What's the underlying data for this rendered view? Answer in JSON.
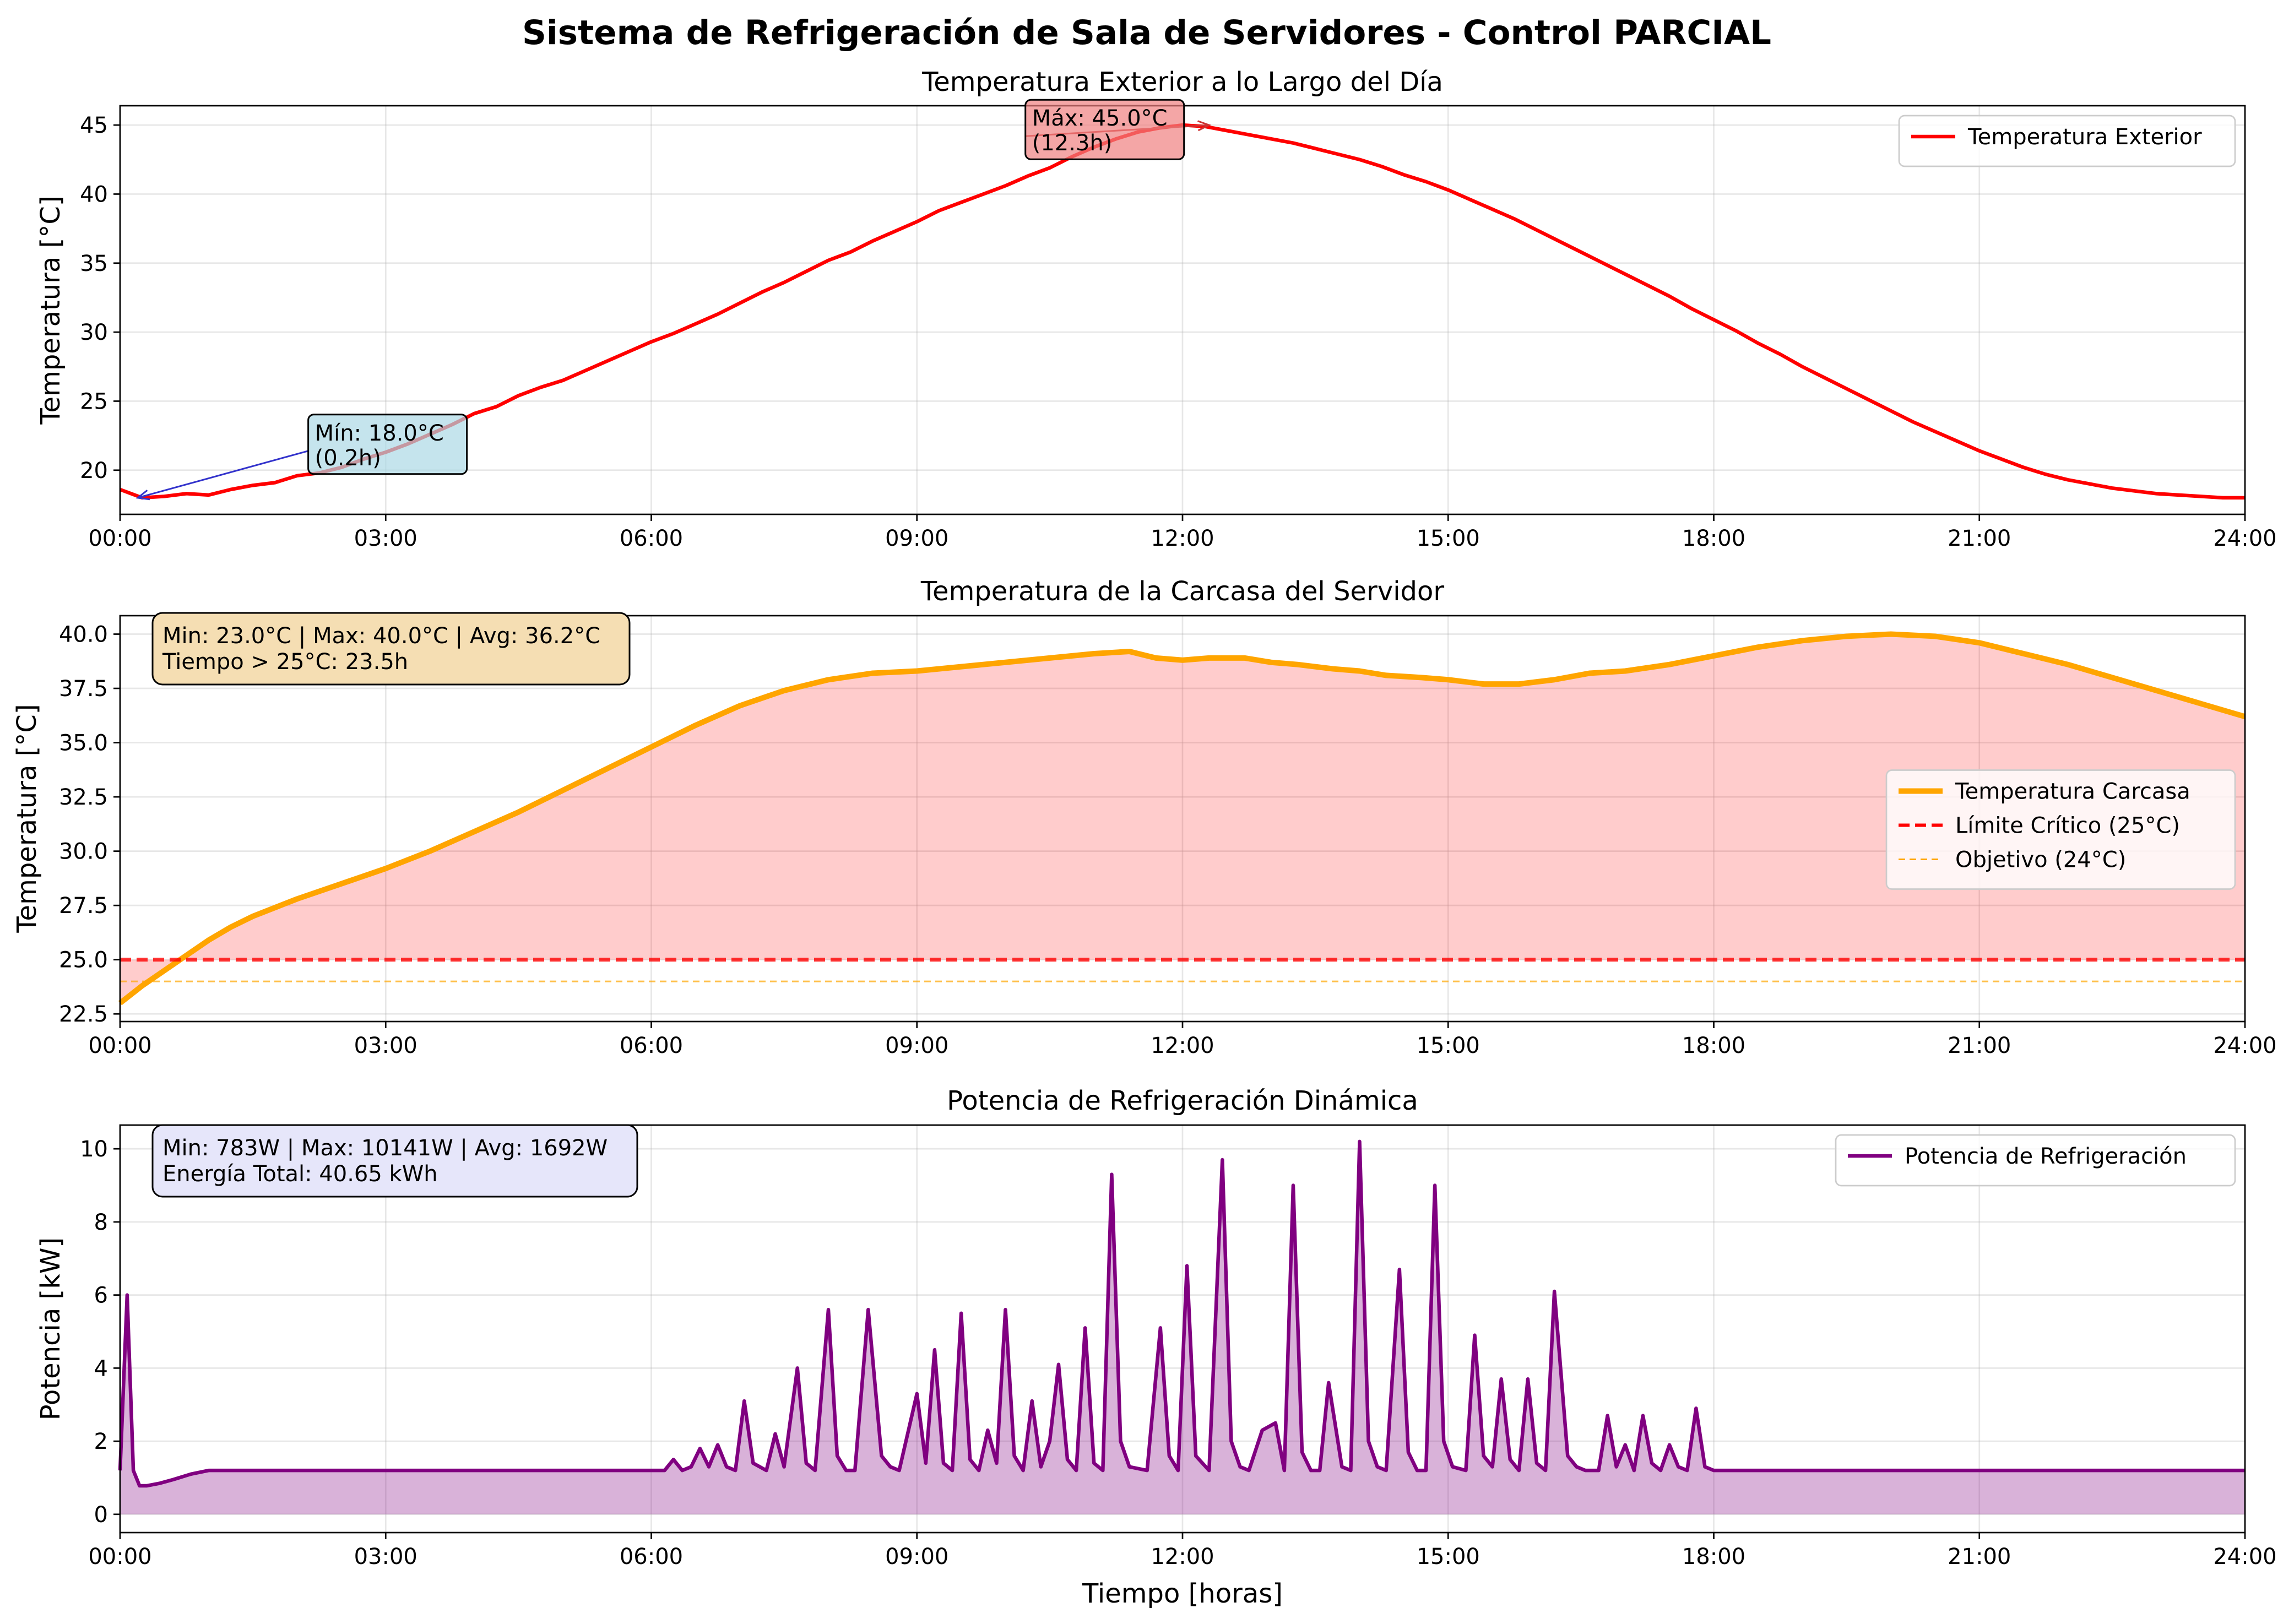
{
  "figure": {
    "suptitle": "Sistema de Refrigeración de Sala de Servidores - Control PARCIAL"
  },
  "chart_data": [
    {
      "type": "line",
      "title": "Temperatura Exterior a lo Largo del Día",
      "ylabel": "Temperatura [°C]",
      "xlabel": "",
      "xlim": [
        0,
        24
      ],
      "ylim": [
        16.8,
        46.4
      ],
      "x_ticks": [
        0,
        3,
        6,
        9,
        12,
        15,
        18,
        21,
        24
      ],
      "x_tick_labels": [
        "00:00",
        "03:00",
        "06:00",
        "09:00",
        "12:00",
        "15:00",
        "18:00",
        "21:00",
        "24:00"
      ],
      "y_ticks": [
        20,
        25,
        30,
        35,
        40,
        45
      ],
      "y_tick_labels": [
        "20",
        "25",
        "30",
        "35",
        "40",
        "45"
      ],
      "grid": true,
      "legend_position": "top-right",
      "series": [
        {
          "name": "Temperatura Exterior",
          "color": "#ff0000",
          "x": [
            0,
            0.25,
            0.5,
            0.75,
            1,
            1.25,
            1.5,
            1.75,
            2,
            2.25,
            2.5,
            2.75,
            3,
            3.25,
            3.5,
            3.75,
            4,
            4.25,
            4.5,
            4.75,
            5,
            5.25,
            5.5,
            5.75,
            6,
            6.25,
            6.5,
            6.75,
            7,
            7.25,
            7.5,
            7.75,
            8,
            8.25,
            8.5,
            8.75,
            9,
            9.25,
            9.5,
            9.75,
            10,
            10.25,
            10.5,
            10.75,
            11,
            11.25,
            11.5,
            11.75,
            12,
            12.25,
            12.5,
            12.75,
            13,
            13.25,
            13.5,
            13.75,
            14,
            14.25,
            14.5,
            14.75,
            15,
            15.25,
            15.5,
            15.75,
            16,
            16.25,
            16.5,
            16.75,
            17,
            17.25,
            17.5,
            17.75,
            18,
            18.25,
            18.5,
            18.75,
            19,
            19.25,
            19.5,
            19.75,
            20,
            20.25,
            20.5,
            20.75,
            21,
            21.25,
            21.5,
            21.75,
            22,
            22.25,
            22.5,
            22.75,
            23,
            23.25,
            23.5,
            23.75,
            24
          ],
          "values": [
            18.6,
            18.0,
            18.1,
            18.3,
            18.2,
            18.6,
            18.9,
            19.1,
            19.6,
            19.8,
            20.2,
            20.8,
            21.3,
            21.9,
            22.6,
            23.3,
            24.1,
            24.6,
            25.4,
            26.0,
            26.5,
            27.2,
            27.9,
            28.6,
            29.3,
            29.9,
            30.6,
            31.3,
            32.1,
            32.9,
            33.6,
            34.4,
            35.2,
            35.8,
            36.6,
            37.3,
            38.0,
            38.8,
            39.4,
            40.0,
            40.6,
            41.3,
            41.9,
            42.7,
            43.4,
            44.0,
            44.5,
            44.8,
            45.0,
            44.9,
            44.6,
            44.3,
            44.0,
            43.7,
            43.3,
            42.9,
            42.5,
            42.0,
            41.4,
            40.9,
            40.3,
            39.6,
            38.9,
            38.2,
            37.4,
            36.6,
            35.8,
            35.0,
            34.2,
            33.4,
            32.6,
            31.7,
            30.9,
            30.1,
            29.2,
            28.4,
            27.5,
            26.7,
            25.9,
            25.1,
            24.3,
            23.5,
            22.8,
            22.1,
            21.4,
            20.8,
            20.2,
            19.7,
            19.3,
            19.0,
            18.7,
            18.5,
            18.3,
            18.2,
            18.1,
            18.0,
            18.0
          ]
        }
      ],
      "annotations": [
        {
          "text_line1": "Mín: 18.0°C",
          "text_line2": "(0.2h)",
          "x": 0.2,
          "y": 18.0,
          "text_x": 2.2,
          "text_y": 20.2,
          "box_color": "#add8e6",
          "arrow_color": "#3333cc"
        },
        {
          "text_line1": "Máx: 45.0°C",
          "text_line2": "(12.3h)",
          "x": 12.3,
          "y": 45.0,
          "text_x": 10.3,
          "text_y": 43.0,
          "box_color": "#f08080",
          "arrow_color": "#cc3333"
        }
      ]
    },
    {
      "type": "area",
      "title": "Temperatura de la Carcasa del Servidor",
      "ylabel": "Temperatura [°C]",
      "xlabel": "",
      "xlim": [
        0,
        24
      ],
      "ylim": [
        22.15,
        40.85
      ],
      "x_ticks": [
        0,
        3,
        6,
        9,
        12,
        15,
        18,
        21,
        24
      ],
      "x_tick_labels": [
        "00:00",
        "03:00",
        "06:00",
        "09:00",
        "12:00",
        "15:00",
        "18:00",
        "21:00",
        "24:00"
      ],
      "y_ticks": [
        22.5,
        25.0,
        27.5,
        30.0,
        32.5,
        35.0,
        37.5,
        40.0
      ],
      "y_tick_labels": [
        "22.5",
        "25.0",
        "27.5",
        "30.0",
        "32.5",
        "35.0",
        "37.5",
        "40.0"
      ],
      "grid": true,
      "legend_position": "center-right",
      "fill_color": "#ff0000",
      "series": [
        {
          "name": "Temperatura Carcasa",
          "color": "#ffa500",
          "x": [
            0,
            0.25,
            0.5,
            0.75,
            1,
            1.25,
            1.5,
            1.75,
            2,
            2.5,
            3,
            3.5,
            4,
            4.5,
            5,
            5.5,
            6,
            6.5,
            7,
            7.5,
            8,
            8.5,
            9,
            9.5,
            10,
            10.5,
            11,
            11.4,
            11.7,
            12,
            12.3,
            12.7,
            13,
            13.3,
            13.7,
            14,
            14.3,
            14.7,
            15,
            15.4,
            15.8,
            16.2,
            16.6,
            17,
            17.5,
            18,
            18.5,
            19,
            19.5,
            20,
            20.5,
            21,
            21.5,
            22,
            22.5,
            23,
            23.5,
            24
          ],
          "values": [
            23.0,
            23.8,
            24.5,
            25.2,
            25.9,
            26.5,
            27.0,
            27.4,
            27.8,
            28.5,
            29.2,
            30.0,
            30.9,
            31.8,
            32.8,
            33.8,
            34.8,
            35.8,
            36.7,
            37.4,
            37.9,
            38.2,
            38.3,
            38.5,
            38.7,
            38.9,
            39.1,
            39.2,
            38.9,
            38.8,
            38.9,
            38.9,
            38.7,
            38.6,
            38.4,
            38.3,
            38.1,
            38.0,
            37.9,
            37.7,
            37.7,
            37.9,
            38.2,
            38.3,
            38.6,
            39.0,
            39.4,
            39.7,
            39.9,
            40.0,
            39.9,
            39.6,
            39.1,
            38.6,
            38.0,
            37.4,
            36.8,
            36.2
          ]
        },
        {
          "name": "Límite Crítico (25°C)",
          "color": "#ff0000",
          "style": "dashed",
          "value": 25.0
        },
        {
          "name": "Objetivo (24°C)",
          "color": "#ffa500",
          "style": "dashed-thin",
          "value": 24.0
        }
      ],
      "stats_box_line1": "Min: 23.0°C | Max: 40.0°C | Avg: 36.2°C",
      "stats_box_line2": "Tiempo > 25°C: 23.5h",
      "stats_box_color": "#f5deb3"
    },
    {
      "type": "area",
      "title": "Potencia de Refrigeración Dinámica",
      "ylabel": "Potencia [kW]",
      "xlabel": "Tiempo [horas]",
      "xlim": [
        0,
        24
      ],
      "ylim": [
        -0.5,
        10.65
      ],
      "x_ticks": [
        0,
        3,
        6,
        9,
        12,
        15,
        18,
        21,
        24
      ],
      "x_tick_labels": [
        "00:00",
        "03:00",
        "06:00",
        "09:00",
        "12:00",
        "15:00",
        "18:00",
        "21:00",
        "24:00"
      ],
      "y_ticks": [
        0,
        2,
        4,
        6,
        8,
        10
      ],
      "y_tick_labels": [
        "0",
        "2",
        "4",
        "6",
        "8",
        "10"
      ],
      "grid": true,
      "legend_position": "top-right",
      "fill_color": "#800080",
      "series": [
        {
          "name": "Potencia de Refrigeración",
          "color": "#800080",
          "x": [
            0,
            0.08,
            0.15,
            0.22,
            0.3,
            0.45,
            0.6,
            0.8,
            1.0,
            6.15,
            6.25,
            6.35,
            6.45,
            6.55,
            6.65,
            6.75,
            6.85,
            6.95,
            7.05,
            7.15,
            7.3,
            7.4,
            7.5,
            7.65,
            7.75,
            7.85,
            8.0,
            8.1,
            8.2,
            8.3,
            8.45,
            8.6,
            8.7,
            8.8,
            9.0,
            9.1,
            9.2,
            9.3,
            9.4,
            9.5,
            9.6,
            9.7,
            9.8,
            9.9,
            10.0,
            10.1,
            10.2,
            10.3,
            10.4,
            10.5,
            10.6,
            10.7,
            10.8,
            10.9,
            11.0,
            11.1,
            11.2,
            11.3,
            11.4,
            11.6,
            11.75,
            11.85,
            11.95,
            12.05,
            12.15,
            12.3,
            12.45,
            12.55,
            12.65,
            12.75,
            12.9,
            13.05,
            13.15,
            13.25,
            13.35,
            13.45,
            13.55,
            13.65,
            13.8,
            13.9,
            14.0,
            14.1,
            14.2,
            14.3,
            14.45,
            14.55,
            14.65,
            14.75,
            14.85,
            14.95,
            15.05,
            15.2,
            15.3,
            15.4,
            15.5,
            15.6,
            15.7,
            15.8,
            15.9,
            16.0,
            16.1,
            16.2,
            16.35,
            16.45,
            16.55,
            16.7,
            16.8,
            16.9,
            17.0,
            17.1,
            17.2,
            17.3,
            17.4,
            17.5,
            17.6,
            17.7,
            17.8,
            17.9,
            18.0,
            18.1,
            18.2,
            24.0
          ],
          "values": [
            1.2,
            6.0,
            1.2,
            0.78,
            0.78,
            0.85,
            0.95,
            1.1,
            1.2,
            1.2,
            1.5,
            1.2,
            1.3,
            1.8,
            1.3,
            1.9,
            1.3,
            1.2,
            3.1,
            1.4,
            1.2,
            2.2,
            1.3,
            4.0,
            1.4,
            1.2,
            5.6,
            1.6,
            1.2,
            1.2,
            5.6,
            1.6,
            1.3,
            1.2,
            3.3,
            1.4,
            4.5,
            1.4,
            1.2,
            5.5,
            1.5,
            1.2,
            2.3,
            1.4,
            5.6,
            1.6,
            1.2,
            3.1,
            1.3,
            2.0,
            4.1,
            1.5,
            1.2,
            5.1,
            1.4,
            1.2,
            9.3,
            2.0,
            1.3,
            1.2,
            5.1,
            1.6,
            1.2,
            6.8,
            1.6,
            1.2,
            9.7,
            2.0,
            1.3,
            1.2,
            2.3,
            2.5,
            1.2,
            9.0,
            1.7,
            1.2,
            1.2,
            3.6,
            1.3,
            1.2,
            10.2,
            2.0,
            1.3,
            1.2,
            6.7,
            1.7,
            1.2,
            1.2,
            9.0,
            2.0,
            1.3,
            1.2,
            4.9,
            1.6,
            1.3,
            3.7,
            1.5,
            1.2,
            3.7,
            1.4,
            1.2,
            6.1,
            1.6,
            1.3,
            1.2,
            1.2,
            2.7,
            1.3,
            1.9,
            1.2,
            2.7,
            1.4,
            1.2,
            1.9,
            1.3,
            1.2,
            2.9,
            1.3,
            1.2,
            1.2,
            1.2,
            1.2
          ]
        }
      ],
      "stats_box_line1": "Min: 783W | Max: 10141W | Avg: 1692W",
      "stats_box_line2": "Energía Total: 40.65 kWh",
      "stats_box_color": "#e6e6fa"
    }
  ]
}
